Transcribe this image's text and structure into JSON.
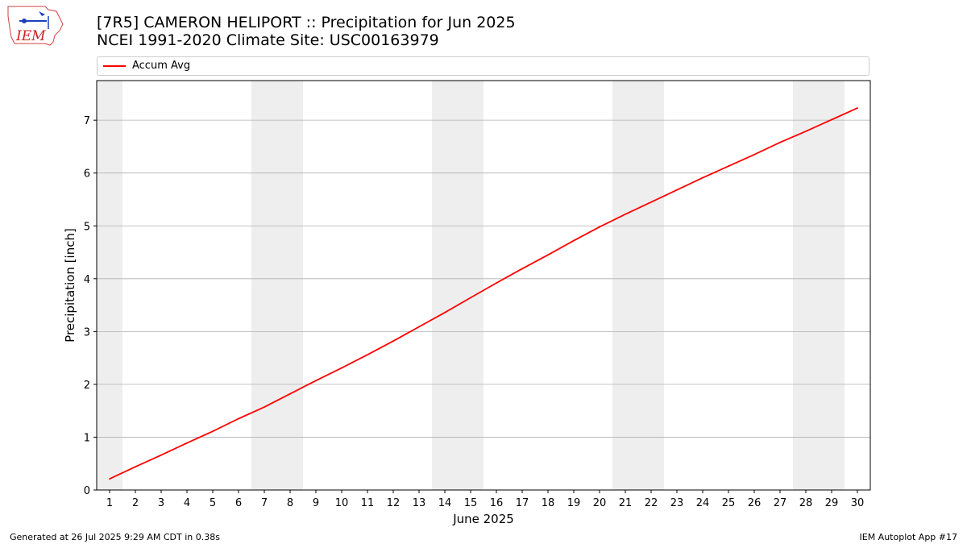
{
  "header": {
    "title_line1": "[7R5] CAMERON HELIPORT :: Precipitation for Jun 2025",
    "title_line2": "NCEI 1991-2020 Climate Site: USC00163979"
  },
  "logo": {
    "text": "IEM",
    "icon": "iem-iowa-map-logo"
  },
  "footer": {
    "left": "Generated at 26 Jul 2025 9:29 AM CDT in 0.38s",
    "right": "IEM Autoplot App #17"
  },
  "colors": {
    "series": "#ff0000",
    "weekend_band": "#eeeeee",
    "grid": "#b0b0b0"
  },
  "chart_data": {
    "type": "line",
    "title": "[7R5] CAMERON HELIPORT :: Precipitation for Jun 2025",
    "subtitle": "NCEI 1991-2020 Climate Site: USC00163979",
    "xlabel": "June 2025",
    "ylabel": "Precipitation [inch]",
    "xlim": [
      0.5,
      30.5
    ],
    "ylim": [
      0,
      7.75
    ],
    "x_ticks": [
      1,
      2,
      3,
      4,
      5,
      6,
      7,
      8,
      9,
      10,
      11,
      12,
      13,
      14,
      15,
      16,
      17,
      18,
      19,
      20,
      21,
      22,
      23,
      24,
      25,
      26,
      27,
      28,
      29,
      30
    ],
    "y_ticks": [
      0,
      1,
      2,
      3,
      4,
      5,
      6,
      7
    ],
    "grid": "horizontal",
    "legend": "top",
    "weekend_days": [
      1,
      7,
      8,
      14,
      15,
      21,
      22,
      28,
      29
    ],
    "series": [
      {
        "name": "Accum Avg",
        "x": [
          1,
          2,
          3,
          4,
          5,
          6,
          7,
          8,
          9,
          10,
          11,
          12,
          13,
          14,
          15,
          16,
          17,
          18,
          19,
          20,
          21,
          22,
          23,
          24,
          25,
          26,
          27,
          28,
          29,
          30
        ],
        "values": [
          0.21,
          0.44,
          0.66,
          0.89,
          1.11,
          1.35,
          1.57,
          1.82,
          2.07,
          2.31,
          2.56,
          2.82,
          3.09,
          3.36,
          3.64,
          3.92,
          4.19,
          4.45,
          4.72,
          4.98,
          5.22,
          5.45,
          5.68,
          5.91,
          6.13,
          6.35,
          6.58,
          6.79,
          7.01,
          7.23
        ]
      }
    ]
  }
}
